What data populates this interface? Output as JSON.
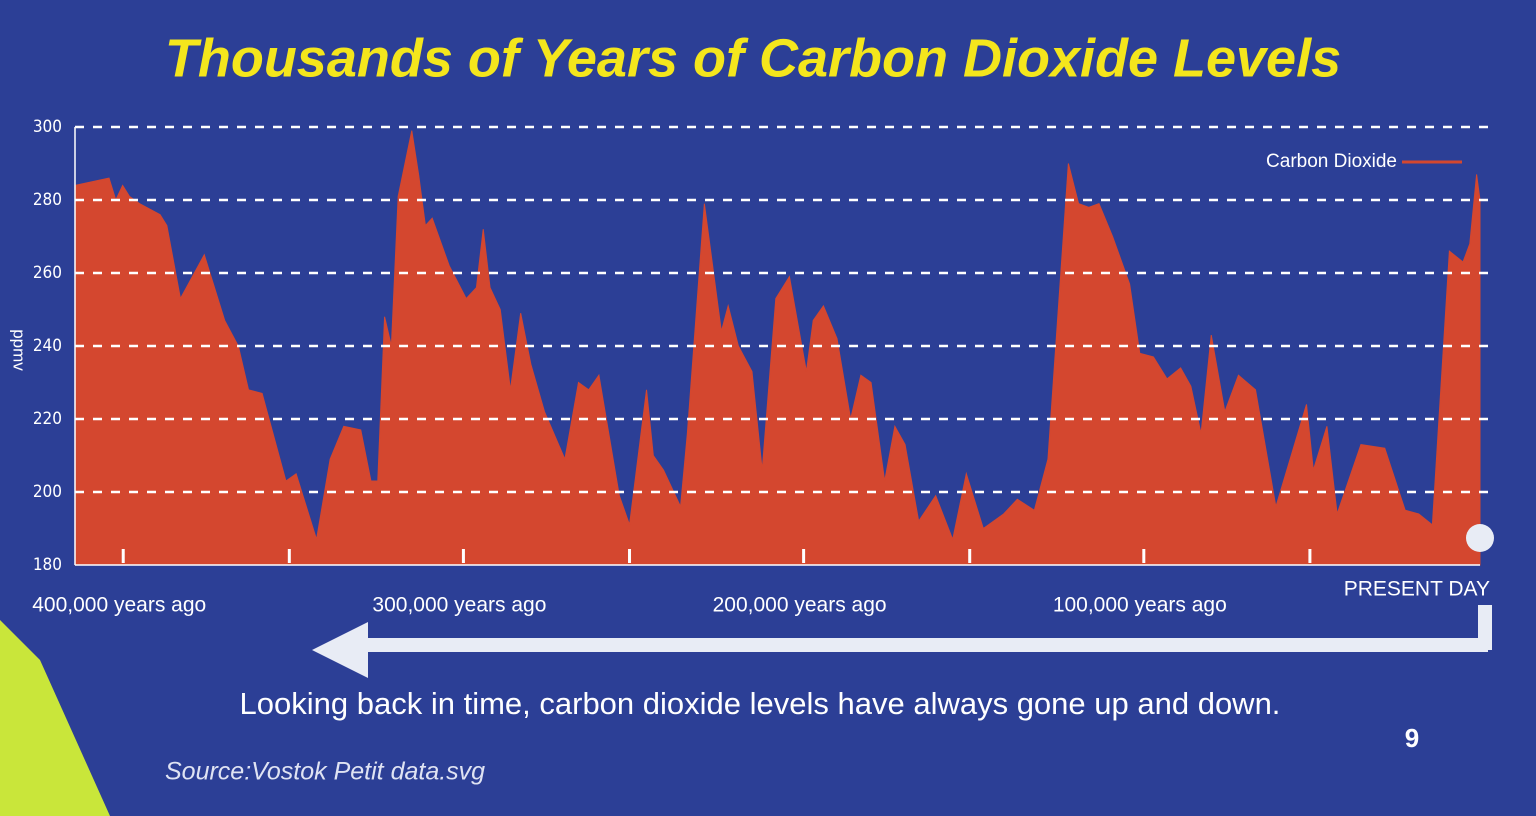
{
  "chart_data": {
    "type": "area",
    "title": "Thousands of Years of Carbon Dioxide Levels",
    "y_label": "ppmv",
    "x": [
      413000,
      403000,
      401000,
      399000,
      397000,
      394000,
      388000,
      386000,
      382000,
      375000,
      369000,
      365000,
      362000,
      358000,
      351000,
      348000,
      342000,
      338000,
      334000,
      329000,
      326000,
      324000,
      322000,
      320000,
      318000,
      314000,
      312000,
      310000,
      308000,
      303000,
      298000,
      295000,
      293000,
      291000,
      288000,
      285000,
      282000,
      279000,
      275000,
      269000,
      265000,
      262000,
      259000,
      253000,
      250000,
      245000,
      243000,
      240000,
      235000,
      233000,
      228000,
      223000,
      221000,
      218000,
      214000,
      211000,
      207000,
      203000,
      198000,
      196000,
      193000,
      189000,
      185000,
      182000,
      179000,
      175000,
      172000,
      169000,
      165000,
      160000,
      155000,
      151000,
      146000,
      140000,
      136000,
      131000,
      127000,
      121000,
      118000,
      115000,
      112000,
      108000,
      103000,
      100000,
      96000,
      92000,
      88000,
      85000,
      82000,
      79000,
      75000,
      71000,
      66000,
      60000,
      51000,
      49000,
      45000,
      42000,
      35000,
      28000,
      22000,
      18000,
      14000,
      9000,
      5000,
      3000,
      1000,
      0
    ],
    "series": [
      {
        "name": "Carbon Dioxide",
        "color": "#d4472f",
        "values": [
          284,
          286,
          280,
          284,
          281,
          279,
          276,
          273,
          253,
          265,
          247,
          240,
          228,
          227,
          203,
          205,
          187,
          209,
          218,
          217,
          203,
          203,
          248,
          240,
          281,
          299,
          287,
          273,
          275,
          262,
          253,
          256,
          272,
          256,
          250,
          228,
          249,
          235,
          222,
          209,
          230,
          228,
          232,
          199,
          191,
          228,
          210,
          206,
          196,
          216,
          279,
          244,
          251,
          240,
          233,
          206,
          253,
          259,
          233,
          247,
          251,
          242,
          220,
          232,
          230,
          203,
          218,
          213,
          192,
          199,
          187,
          205,
          190,
          194,
          198,
          195,
          209,
          290,
          279,
          278,
          279,
          270,
          257,
          238,
          237,
          231,
          234,
          229,
          216,
          243,
          222,
          232,
          228,
          196,
          224,
          206,
          218,
          194,
          213,
          212,
          195,
          194,
          191,
          266,
          263,
          268,
          287,
          280
        ]
      }
    ],
    "xlim": [
      413000,
      0
    ],
    "xticks": [
      {
        "value": 400000,
        "label": "400,000 years ago"
      },
      {
        "value": 300000,
        "label": "300,000 years ago"
      },
      {
        "value": 200000,
        "label": "200,000 years ago"
      },
      {
        "value": 100000,
        "label": "100,000 years ago"
      },
      {
        "value": 0,
        "label": "PRESENT DAY"
      }
    ],
    "xminorticks": [
      350000,
      250000,
      150000,
      50000
    ],
    "ylim": [
      180,
      300
    ],
    "yticks": [
      180,
      200,
      220,
      240,
      260,
      280,
      300
    ],
    "grid": true,
    "legend": "top-right",
    "caption": "Looking back in time, carbon dioxide levels have always gone up and down.",
    "source": "Source:Vostok Petit data.svg",
    "page_number": "9"
  }
}
